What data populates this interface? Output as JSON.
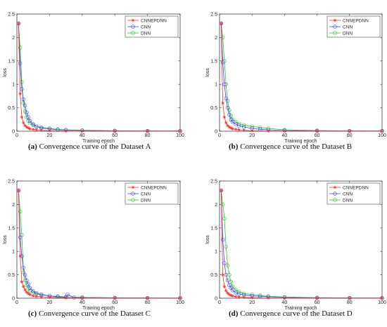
{
  "figure": {
    "colors": {
      "CNNEPDNN": "#ff3030",
      "CNN": "#4040ff",
      "DNN": "#22cc22"
    }
  },
  "chart_data": [
    {
      "type": "line",
      "caption_letter": "(a)",
      "caption_text": " Convergence curve of the Dataset A",
      "xlabel": "Training epoch",
      "ylabel": "loss",
      "xlim": [
        0,
        100
      ],
      "ylim": [
        0,
        2.5
      ],
      "xticks": [
        0,
        20,
        40,
        60,
        80,
        100
      ],
      "yticks": [
        0,
        0.5,
        1,
        1.5,
        2,
        2.5
      ],
      "legend_position": "top-right",
      "series": [
        {
          "name": "CNNEPDNN",
          "marker": "star",
          "color": "#ff3030",
          "x": [
            1,
            2,
            3,
            4,
            5,
            6,
            7,
            8,
            10,
            12,
            15,
            20,
            30,
            40,
            60,
            80,
            100
          ],
          "y": [
            2.3,
            0.8,
            0.3,
            0.18,
            0.12,
            0.09,
            0.07,
            0.05,
            0.04,
            0.03,
            0.02,
            0.01,
            0.005,
            0.003,
            0.002,
            0.002,
            0.002
          ]
        },
        {
          "name": "CNN",
          "marker": "circle",
          "color": "#4040ff",
          "x": [
            1,
            2,
            3,
            4,
            5,
            6,
            7,
            8,
            10,
            12,
            15,
            20,
            25,
            30,
            40,
            60,
            80,
            100
          ],
          "y": [
            2.3,
            1.45,
            0.9,
            0.68,
            0.55,
            0.4,
            0.3,
            0.22,
            0.15,
            0.1,
            0.07,
            0.05,
            0.03,
            0.025,
            0.015,
            0.008,
            0.005,
            0.004
          ]
        },
        {
          "name": "DNN",
          "marker": "circle",
          "color": "#22cc22",
          "x": [
            1,
            2,
            3,
            4,
            5,
            6,
            7,
            8,
            10,
            12,
            15,
            20,
            25,
            30,
            40,
            60,
            80,
            100
          ],
          "y": [
            2.3,
            1.78,
            1.05,
            0.6,
            0.42,
            0.3,
            0.22,
            0.17,
            0.13,
            0.1,
            0.08,
            0.06,
            0.04,
            0.03,
            0.02,
            0.01,
            0.008,
            0.006
          ]
        }
      ]
    },
    {
      "type": "line",
      "caption_letter": "(b)",
      "caption_text": " Convergence curve of the Dataset B",
      "xlabel": "Training epoch",
      "ylabel": "loss",
      "xlim": [
        0,
        100
      ],
      "ylim": [
        0,
        2.5
      ],
      "xticks": [
        0,
        20,
        40,
        60,
        80,
        100
      ],
      "yticks": [
        0,
        0.5,
        1,
        1.5,
        2,
        2.5
      ],
      "legend_position": "top-right",
      "series": [
        {
          "name": "CNNEPDNN",
          "marker": "star",
          "color": "#ff3030",
          "x": [
            1,
            2,
            3,
            4,
            5,
            6,
            7,
            8,
            10,
            12,
            15,
            20,
            30,
            40,
            60,
            80,
            100
          ],
          "y": [
            2.3,
            0.6,
            0.3,
            0.18,
            0.12,
            0.09,
            0.07,
            0.05,
            0.04,
            0.03,
            0.02,
            0.01,
            0.005,
            0.003,
            0.002,
            0.002,
            0.002
          ]
        },
        {
          "name": "CNN",
          "marker": "circle",
          "color": "#4040ff",
          "x": [
            1,
            2,
            3,
            4,
            5,
            6,
            7,
            8,
            10,
            12,
            15,
            20,
            25,
            30,
            40,
            60,
            80,
            100
          ],
          "y": [
            2.3,
            1.47,
            1.0,
            0.7,
            0.5,
            0.35,
            0.25,
            0.2,
            0.15,
            0.12,
            0.09,
            0.06,
            0.04,
            0.03,
            0.015,
            0.008,
            0.005,
            0.004
          ]
        },
        {
          "name": "DNN",
          "marker": "circle",
          "color": "#22cc22",
          "x": [
            1,
            2,
            3,
            4,
            5,
            6,
            7,
            8,
            10,
            12,
            15,
            20,
            25,
            30,
            40,
            60,
            80,
            100
          ],
          "y": [
            2.3,
            2.0,
            1.5,
            1.0,
            0.65,
            0.45,
            0.33,
            0.25,
            0.2,
            0.16,
            0.13,
            0.1,
            0.08,
            0.06,
            0.03,
            0.015,
            0.008,
            0.006
          ]
        }
      ]
    },
    {
      "type": "line",
      "caption_letter": "(c)",
      "caption_text": " Convergence curve of the Dataset C",
      "xlabel": "Training epoch",
      "ylabel": "loss",
      "xlim": [
        0,
        100
      ],
      "ylim": [
        0,
        2.5
      ],
      "xticks": [
        0,
        20,
        40,
        60,
        80,
        100
      ],
      "yticks": [
        0,
        0.5,
        1,
        1.5,
        2,
        2.5
      ],
      "legend_position": "top-right",
      "series": [
        {
          "name": "CNNEPDNN",
          "marker": "star",
          "color": "#ff3030",
          "x": [
            1,
            2,
            3,
            4,
            5,
            6,
            7,
            8,
            10,
            12,
            15,
            20,
            30,
            40,
            60,
            80,
            100
          ],
          "y": [
            2.3,
            0.9,
            0.35,
            0.25,
            0.18,
            0.13,
            0.1,
            0.08,
            0.05,
            0.04,
            0.03,
            0.02,
            0.01,
            0.005,
            0.003,
            0.002,
            0.002
          ]
        },
        {
          "name": "CNN",
          "marker": "circle",
          "color": "#4040ff",
          "x": [
            1,
            2,
            3,
            4,
            5,
            6,
            7,
            8,
            10,
            12,
            15,
            20,
            25,
            30,
            31,
            35,
            40,
            60,
            80,
            100
          ],
          "y": [
            2.3,
            1.3,
            0.9,
            0.65,
            0.5,
            0.38,
            0.3,
            0.22,
            0.15,
            0.11,
            0.08,
            0.05,
            0.03,
            0.02,
            0.08,
            0.015,
            0.01,
            0.006,
            0.004,
            0.003
          ]
        },
        {
          "name": "DNN",
          "marker": "circle",
          "color": "#22cc22",
          "x": [
            1,
            2,
            3,
            4,
            5,
            6,
            7,
            8,
            10,
            12,
            15,
            20,
            25,
            30,
            40,
            60,
            80,
            100
          ],
          "y": [
            2.3,
            1.85,
            1.35,
            0.55,
            0.38,
            0.28,
            0.2,
            0.16,
            0.12,
            0.09,
            0.07,
            0.05,
            0.04,
            0.03,
            0.02,
            0.01,
            0.007,
            0.005
          ]
        }
      ]
    },
    {
      "type": "line",
      "caption_letter": "(d)",
      "caption_text": " Convergence curve of the Dataset D",
      "xlabel": "Training epoch",
      "ylabel": "loss",
      "xlim": [
        0,
        100
      ],
      "ylim": [
        0,
        2.5
      ],
      "xticks": [
        0,
        20,
        40,
        60,
        80,
        100
      ],
      "yticks": [
        0,
        0.5,
        1,
        1.5,
        2,
        2.5
      ],
      "legend_position": "top-right",
      "series": [
        {
          "name": "CNNEPDNN",
          "marker": "star",
          "color": "#ff3030",
          "x": [
            1,
            2,
            3,
            4,
            5,
            6,
            7,
            8,
            10,
            12,
            15,
            20,
            30,
            40,
            60,
            80,
            100
          ],
          "y": [
            2.3,
            0.5,
            0.25,
            0.16,
            0.11,
            0.08,
            0.06,
            0.05,
            0.035,
            0.025,
            0.02,
            0.01,
            0.005,
            0.003,
            0.002,
            0.002,
            0.002
          ]
        },
        {
          "name": "CNN",
          "marker": "circle",
          "color": "#4040ff",
          "x": [
            1,
            2,
            3,
            4,
            5,
            6,
            7,
            8,
            10,
            12,
            15,
            20,
            25,
            30,
            40,
            60,
            80,
            100
          ],
          "y": [
            2.3,
            1.25,
            0.75,
            0.5,
            0.38,
            0.28,
            0.22,
            0.17,
            0.12,
            0.09,
            0.07,
            0.05,
            0.04,
            0.03,
            0.015,
            0.008,
            0.005,
            0.004
          ]
        },
        {
          "name": "DNN",
          "marker": "circle",
          "color": "#22cc22",
          "x": [
            1,
            2,
            3,
            4,
            5,
            6,
            7,
            8,
            10,
            12,
            15,
            20,
            25,
            30,
            40,
            60,
            80,
            100
          ],
          "y": [
            2.3,
            2.0,
            1.7,
            1.1,
            0.7,
            0.5,
            0.35,
            0.25,
            0.18,
            0.14,
            0.1,
            0.08,
            0.06,
            0.04,
            0.025,
            0.012,
            0.008,
            0.006
          ]
        }
      ]
    }
  ]
}
